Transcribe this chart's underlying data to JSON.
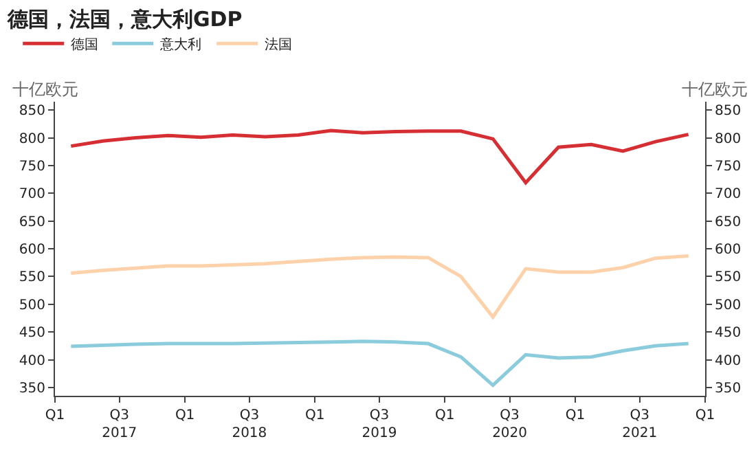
{
  "chart_data": {
    "type": "line",
    "title": "德国，法国，意大利GDP",
    "x": [
      "2017-02-15",
      "2017-05-15",
      "2017-08-15",
      "2017-11-15",
      "2018-02-15",
      "2018-05-15",
      "2018-08-15",
      "2018-11-15",
      "2019-02-15",
      "2019-05-15",
      "2019-08-15",
      "2019-11-15",
      "2020-02-15",
      "2020-05-15",
      "2020-08-15",
      "2020-11-15",
      "2021-02-15",
      "2021-05-15",
      "2021-08-15",
      "2021-11-15"
    ],
    "series": [
      {
        "name": "德国",
        "color": "#d62f33",
        "values": [
          785,
          794,
          800,
          804,
          801,
          805,
          802,
          805,
          813,
          809,
          811,
          812,
          812,
          798,
          719,
          783,
          788,
          776,
          793,
          806
        ]
      },
      {
        "name": "意大利",
        "color": "#8acbdc",
        "values": [
          424,
          426,
          428,
          429,
          429,
          429,
          430,
          431,
          432,
          433,
          432,
          429,
          405,
          354,
          409,
          403,
          405,
          416,
          425,
          429
        ]
      },
      {
        "name": "法国",
        "color": "#fdd1a9",
        "values": [
          556,
          561,
          565,
          569,
          569,
          571,
          573,
          577,
          581,
          584,
          585,
          584,
          550,
          477,
          564,
          558,
          558,
          566,
          583,
          587
        ]
      }
    ],
    "ylabel": "十亿欧元",
    "y2label": "十亿欧元",
    "xlim": [
      "2017-01-01",
      "2022-01-01"
    ],
    "xticks": [
      {
        "value": "2017-01-01",
        "label": "Q1"
      },
      {
        "value": "2017-07-01",
        "label": "Q3\n2017"
      },
      {
        "value": "2018-01-01",
        "label": "Q1"
      },
      {
        "value": "2018-07-01",
        "label": "Q3\n2018"
      },
      {
        "value": "2019-01-01",
        "label": "Q1"
      },
      {
        "value": "2019-07-01",
        "label": "Q3\n2019"
      },
      {
        "value": "2020-01-01",
        "label": "Q1"
      },
      {
        "value": "2020-07-01",
        "label": "Q3\n2020"
      },
      {
        "value": "2021-01-01",
        "label": "Q1"
      },
      {
        "value": "2021-07-01",
        "label": "Q3\n2021"
      },
      {
        "value": "2022-01-01",
        "label": "Q1"
      }
    ],
    "ylim": [
      335,
      865
    ],
    "yticks": [
      350,
      400,
      450,
      500,
      550,
      600,
      650,
      700,
      750,
      800,
      850
    ],
    "y2lim": [
      335,
      865
    ],
    "y2ticks": [
      350,
      400,
      450,
      500,
      550,
      600,
      650,
      700,
      750,
      800,
      850
    ],
    "legend": "top left",
    "marker": "none",
    "line_style": "solid"
  }
}
